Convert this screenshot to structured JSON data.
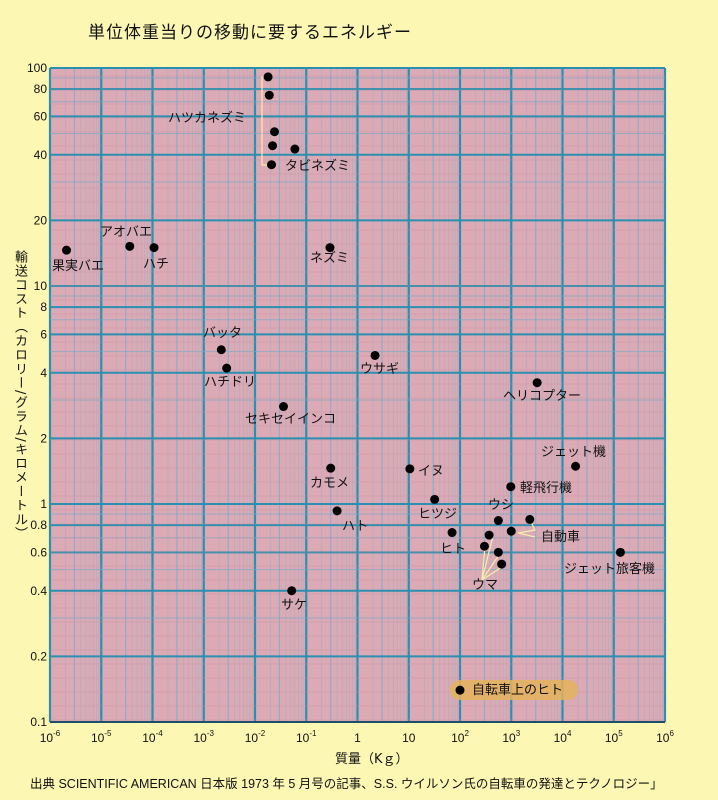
{
  "chart_data": {
    "type": "scatter",
    "title": "単位体重当りの移動に要するエネルギー",
    "xlabel": "質量（Kｇ）",
    "ylabel": "輸送コスト（カロリー/グラム/キロメートル）",
    "xscale": "log",
    "yscale": "log",
    "xlim": [
      1e-06,
      1000000
    ],
    "ylim": [
      0.1,
      100
    ],
    "grid": true,
    "x_ticks": [
      {
        "value": 1e-06,
        "base": "10",
        "exp": "-6"
      },
      {
        "value": 1e-05,
        "base": "10",
        "exp": "-5"
      },
      {
        "value": 0.0001,
        "base": "10",
        "exp": "-4"
      },
      {
        "value": 0.001,
        "base": "10",
        "exp": "-3"
      },
      {
        "value": 0.01,
        "base": "10",
        "exp": "-2"
      },
      {
        "value": 0.1,
        "base": "10",
        "exp": "-1"
      },
      {
        "value": 1,
        "base": "1",
        "exp": ""
      },
      {
        "value": 10,
        "base": "10",
        "exp": ""
      },
      {
        "value": 100,
        "base": "10",
        "exp": "2"
      },
      {
        "value": 1000,
        "base": "10",
        "exp": "3"
      },
      {
        "value": 10000,
        "base": "10",
        "exp": "4"
      },
      {
        "value": 100000,
        "base": "10",
        "exp": "5"
      },
      {
        "value": 1000000,
        "base": "10",
        "exp": "6"
      }
    ],
    "y_ticks": [
      {
        "value": 100,
        "label": "100"
      },
      {
        "value": 80,
        "label": "80"
      },
      {
        "value": 60,
        "label": "60"
      },
      {
        "value": 40,
        "label": "40"
      },
      {
        "value": 20,
        "label": "20"
      },
      {
        "value": 10,
        "label": "10"
      },
      {
        "value": 8,
        "label": "8"
      },
      {
        "value": 6,
        "label": "6"
      },
      {
        "value": 4,
        "label": "4"
      },
      {
        "value": 2,
        "label": "2"
      },
      {
        "value": 1,
        "label": "1"
      },
      {
        "value": 0.8,
        "label": "0.8"
      },
      {
        "value": 0.6,
        "label": "0.6"
      },
      {
        "value": 0.4,
        "label": "0.4"
      },
      {
        "value": 0.2,
        "label": "0.2"
      },
      {
        "value": 0.1,
        "label": "0.1"
      }
    ],
    "series": [
      {
        "name": "果実バエ",
        "points": [
          [
            2.1e-06,
            14.6
          ]
        ]
      },
      {
        "name": "アオバエ",
        "points": [
          [
            3.6e-05,
            15.2
          ]
        ]
      },
      {
        "name": "ハチ",
        "points": [
          [
            0.000107,
            15
          ]
        ]
      },
      {
        "name": "ハツカネズミ",
        "points": [
          [
            0.018,
            91
          ],
          [
            0.019,
            75
          ],
          [
            0.024,
            51
          ],
          [
            0.022,
            44
          ],
          [
            0.06,
            42.5
          ]
        ]
      },
      {
        "name": "タビネズミ",
        "points": [
          [
            0.021,
            36
          ]
        ]
      },
      {
        "name": "ネズミ",
        "points": [
          [
            0.29,
            15
          ]
        ]
      },
      {
        "name": "バッタ",
        "points": [
          [
            0.0022,
            5.1
          ]
        ]
      },
      {
        "name": "ハチドリ",
        "points": [
          [
            0.0028,
            4.2
          ]
        ]
      },
      {
        "name": "ウサギ",
        "points": [
          [
            2.2,
            4.8
          ]
        ]
      },
      {
        "name": "セキセイインコ",
        "points": [
          [
            0.036,
            2.8
          ]
        ]
      },
      {
        "name": "ヘリコプター",
        "points": [
          [
            3200,
            3.6
          ]
        ]
      },
      {
        "name": "カモメ",
        "points": [
          [
            0.3,
            1.46
          ]
        ]
      },
      {
        "name": "イヌ",
        "points": [
          [
            10.5,
            1.45
          ]
        ]
      },
      {
        "name": "ハト",
        "points": [
          [
            0.4,
            0.93
          ]
        ]
      },
      {
        "name": "ヒツジ",
        "points": [
          [
            32,
            1.05
          ]
        ]
      },
      {
        "name": "ジェット機",
        "points": [
          [
            18000,
            1.49
          ]
        ]
      },
      {
        "name": "軽飛行機",
        "points": [
          [
            980,
            1.2
          ]
        ]
      },
      {
        "name": "ウシ",
        "points": [
          [
            560,
            0.84
          ]
        ]
      },
      {
        "name": "自動車",
        "points": [
          [
            2300,
            0.85
          ],
          [
            1000,
            0.75
          ]
        ]
      },
      {
        "name": "ヒト",
        "points": [
          [
            70,
            0.74
          ]
        ]
      },
      {
        "name": "ウマ",
        "points": [
          [
            370,
            0.72
          ],
          [
            300,
            0.64
          ],
          [
            560,
            0.6
          ],
          [
            650,
            0.53
          ]
        ]
      },
      {
        "name": "ジェット旅客機",
        "points": [
          [
            135000,
            0.6
          ]
        ]
      },
      {
        "name": "サケ",
        "points": [
          [
            0.052,
            0.4
          ]
        ]
      },
      {
        "name": "自転車上のヒト",
        "points": [
          [
            100,
            0.14
          ]
        ],
        "highlight": true
      }
    ]
  },
  "footer": "出典 SCIENTIFIC AMERICAN 日本版 1973 年 5 月号の記事、S.S. ウイルソン氏の自転車の発達とテクノロジー」"
}
